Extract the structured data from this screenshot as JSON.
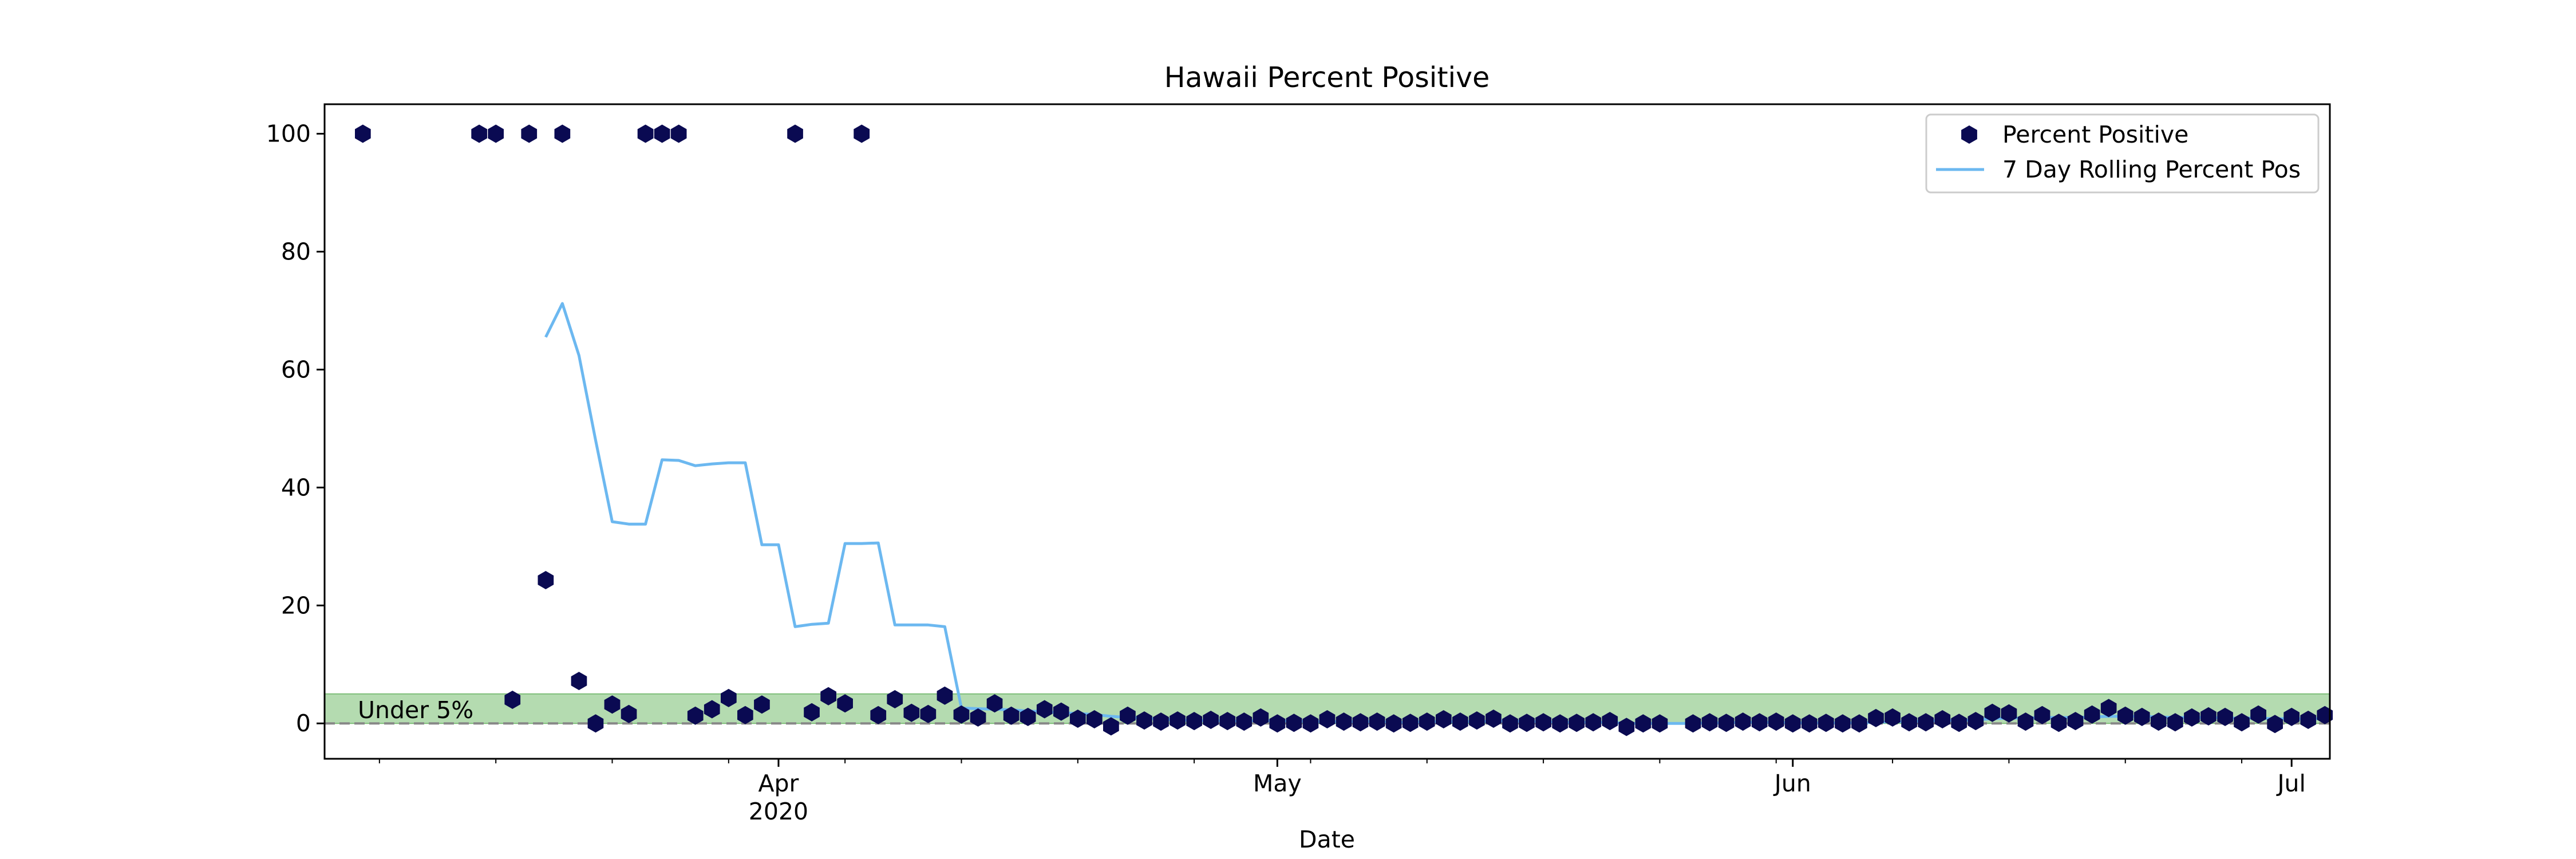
{
  "chart_data": {
    "type": "scatter",
    "title": "Hawaii Percent Positive",
    "xlabel": "Date",
    "ylabel": "",
    "xlim": [
      "2020-03-05",
      "2020-07-03"
    ],
    "ylim": [
      -6,
      105
    ],
    "y_ticks": [
      0,
      20,
      40,
      60,
      80,
      100
    ],
    "x_ticks": [
      {
        "date": "2020-04-01",
        "label": "Apr",
        "sublabel": "2020"
      },
      {
        "date": "2020-05-01",
        "label": "May",
        "sublabel": ""
      },
      {
        "date": "2020-06-01",
        "label": "Jun",
        "sublabel": ""
      },
      {
        "date": "2020-07-01",
        "label": "Jul",
        "sublabel": ""
      }
    ],
    "grid": false,
    "legend_position": "top-right",
    "reference": {
      "band": [
        0,
        5
      ],
      "band_color": "#b4dbb0",
      "band_label": "Under 5%",
      "line_value": 0,
      "line_color": "#888888"
    },
    "series": [
      {
        "name": "Percent Positive",
        "type": "scatter",
        "marker": "hexagon",
        "color": "#0a0a52",
        "points": [
          [
            "2020-03-07",
            100
          ],
          [
            "2020-03-14",
            100
          ],
          [
            "2020-03-15",
            100
          ],
          [
            "2020-03-16",
            4
          ],
          [
            "2020-03-17",
            100
          ],
          [
            "2020-03-18",
            24.3
          ],
          [
            "2020-03-19",
            100
          ],
          [
            "2020-03-20",
            7.2
          ],
          [
            "2020-03-21",
            0
          ],
          [
            "2020-03-22",
            3.2
          ],
          [
            "2020-03-23",
            1.6
          ],
          [
            "2020-03-24",
            100
          ],
          [
            "2020-03-25",
            100
          ],
          [
            "2020-03-26",
            100
          ],
          [
            "2020-03-27",
            1.3
          ],
          [
            "2020-03-28",
            2.4
          ],
          [
            "2020-03-29",
            4.3
          ],
          [
            "2020-03-30",
            1.4
          ],
          [
            "2020-03-31",
            3.2
          ],
          [
            "2020-04-02",
            100
          ],
          [
            "2020-04-03",
            1.9
          ],
          [
            "2020-04-04",
            4.6
          ],
          [
            "2020-04-05",
            3.4
          ],
          [
            "2020-04-06",
            100
          ],
          [
            "2020-04-07",
            1.4
          ],
          [
            "2020-04-08",
            4.1
          ],
          [
            "2020-04-09",
            1.8
          ],
          [
            "2020-04-10",
            1.6
          ],
          [
            "2020-04-11",
            4.7
          ],
          [
            "2020-04-12",
            1.5
          ],
          [
            "2020-04-13",
            1
          ],
          [
            "2020-04-14",
            3.4
          ],
          [
            "2020-04-15",
            1.3
          ],
          [
            "2020-04-16",
            1.1
          ],
          [
            "2020-04-17",
            2.4
          ],
          [
            "2020-04-18",
            2
          ],
          [
            "2020-04-19",
            0.8
          ],
          [
            "2020-04-20",
            0.7
          ],
          [
            "2020-04-21",
            -0.5
          ],
          [
            "2020-04-22",
            1.3
          ],
          [
            "2020-04-23",
            0.5
          ],
          [
            "2020-04-24",
            0.3
          ],
          [
            "2020-04-25",
            0.5
          ],
          [
            "2020-04-26",
            0.4
          ],
          [
            "2020-04-27",
            0.6
          ],
          [
            "2020-04-28",
            0.4
          ],
          [
            "2020-04-29",
            0.3
          ],
          [
            "2020-04-30",
            1
          ],
          [
            "2020-05-01",
            0
          ],
          [
            "2020-05-02",
            0.1
          ],
          [
            "2020-05-03",
            0
          ],
          [
            "2020-05-04",
            0.7
          ],
          [
            "2020-05-05",
            0.3
          ],
          [
            "2020-05-06",
            0.2
          ],
          [
            "2020-05-07",
            0.3
          ],
          [
            "2020-05-08",
            0
          ],
          [
            "2020-05-09",
            0.1
          ],
          [
            "2020-05-10",
            0.3
          ],
          [
            "2020-05-11",
            0.7
          ],
          [
            "2020-05-12",
            0.3
          ],
          [
            "2020-05-13",
            0.5
          ],
          [
            "2020-05-14",
            0.8
          ],
          [
            "2020-05-15",
            0
          ],
          [
            "2020-05-16",
            0.1
          ],
          [
            "2020-05-17",
            0.2
          ],
          [
            "2020-05-18",
            0
          ],
          [
            "2020-05-19",
            0.1
          ],
          [
            "2020-05-20",
            0.2
          ],
          [
            "2020-05-21",
            0.4
          ],
          [
            "2020-05-22",
            -0.6
          ],
          [
            "2020-05-23",
            0
          ],
          [
            "2020-05-24",
            0
          ],
          [
            "2020-05-26",
            0
          ],
          [
            "2020-05-27",
            0.2
          ],
          [
            "2020-05-28",
            0.1
          ],
          [
            "2020-05-29",
            0.3
          ],
          [
            "2020-05-30",
            0.2
          ],
          [
            "2020-05-31",
            0.3
          ],
          [
            "2020-06-01",
            0
          ],
          [
            "2020-06-02",
            0
          ],
          [
            "2020-06-03",
            0.1
          ],
          [
            "2020-06-04",
            0
          ],
          [
            "2020-06-05",
            0
          ],
          [
            "2020-06-06",
            0.9
          ],
          [
            "2020-06-07",
            1
          ],
          [
            "2020-06-08",
            0.2
          ],
          [
            "2020-06-09",
            0.2
          ],
          [
            "2020-06-10",
            0.7
          ],
          [
            "2020-06-11",
            0.1
          ],
          [
            "2020-06-12",
            0.4
          ],
          [
            "2020-06-13",
            1.8
          ],
          [
            "2020-06-14",
            1.7
          ],
          [
            "2020-06-15",
            0.3
          ],
          [
            "2020-06-16",
            1.4
          ],
          [
            "2020-06-17",
            0.1
          ],
          [
            "2020-06-18",
            0.4
          ],
          [
            "2020-06-19",
            1.5
          ],
          [
            "2020-06-20",
            2.6
          ],
          [
            "2020-06-21",
            1.3
          ],
          [
            "2020-06-22",
            1.1
          ],
          [
            "2020-06-23",
            0.3
          ],
          [
            "2020-06-24",
            0.2
          ],
          [
            "2020-06-25",
            1
          ],
          [
            "2020-06-26",
            1.2
          ],
          [
            "2020-06-27",
            1.1
          ],
          [
            "2020-06-28",
            0.2
          ],
          [
            "2020-06-29",
            1.5
          ],
          [
            "2020-06-30",
            -0.1
          ],
          [
            "2020-07-01",
            1.1
          ],
          [
            "2020-07-02",
            0.6
          ],
          [
            "2020-07-03",
            1.4
          ]
        ]
      },
      {
        "name": "7 Day Rolling Percent Pos",
        "type": "line",
        "color": "#6cb8f0",
        "points": [
          [
            "2020-03-18",
            65.5
          ],
          [
            "2020-03-19",
            71.2
          ],
          [
            "2020-03-20",
            62.4
          ],
          [
            "2020-03-21",
            48
          ],
          [
            "2020-03-22",
            34.2
          ],
          [
            "2020-03-23",
            33.8
          ],
          [
            "2020-03-24",
            33.8
          ],
          [
            "2020-03-25",
            44.7
          ],
          [
            "2020-03-26",
            44.6
          ],
          [
            "2020-03-27",
            43.7
          ],
          [
            "2020-03-28",
            44
          ],
          [
            "2020-03-29",
            44.2
          ],
          [
            "2020-03-30",
            44.2
          ],
          [
            "2020-03-31",
            30.3
          ],
          [
            "2020-04-01",
            30.3
          ],
          [
            "2020-04-02",
            16.4
          ],
          [
            "2020-04-03",
            16.8
          ],
          [
            "2020-04-04",
            17
          ],
          [
            "2020-04-05",
            30.5
          ],
          [
            "2020-04-06",
            30.5
          ],
          [
            "2020-04-07",
            30.6
          ],
          [
            "2020-04-08",
            16.7
          ],
          [
            "2020-04-09",
            16.7
          ],
          [
            "2020-04-10",
            16.7
          ],
          [
            "2020-04-11",
            16.4
          ],
          [
            "2020-04-12",
            2.6
          ],
          [
            "2020-04-13",
            2.5
          ],
          [
            "2020-04-14",
            2.4
          ],
          [
            "2020-04-15",
            2.3
          ],
          [
            "2020-04-16",
            2.1
          ],
          [
            "2020-04-17",
            2
          ],
          [
            "2020-04-18",
            1.8
          ],
          [
            "2020-04-19",
            1.7
          ],
          [
            "2020-04-20",
            1.5
          ],
          [
            "2020-04-21",
            1.2
          ],
          [
            "2020-04-22",
            1
          ],
          [
            "2020-04-23",
            0.9
          ],
          [
            "2020-04-24",
            0.7
          ],
          [
            "2020-04-25",
            0.6
          ],
          [
            "2020-04-26",
            0.5
          ],
          [
            "2020-04-27",
            0.5
          ],
          [
            "2020-04-28",
            0.4
          ],
          [
            "2020-04-29",
            0.4
          ],
          [
            "2020-04-30",
            0.5
          ],
          [
            "2020-05-01",
            0.4
          ],
          [
            "2020-05-02",
            0.4
          ],
          [
            "2020-05-03",
            0.3
          ],
          [
            "2020-05-04",
            0.3
          ],
          [
            "2020-05-05",
            0.3
          ],
          [
            "2020-05-06",
            0.3
          ],
          [
            "2020-05-07",
            0.3
          ],
          [
            "2020-05-08",
            0.2
          ],
          [
            "2020-05-09",
            0.2
          ],
          [
            "2020-05-10",
            0.3
          ],
          [
            "2020-05-11",
            0.3
          ],
          [
            "2020-05-12",
            0.3
          ],
          [
            "2020-05-13",
            0.3
          ],
          [
            "2020-05-14",
            0.4
          ],
          [
            "2020-05-15",
            0.4
          ],
          [
            "2020-05-16",
            0.3
          ],
          [
            "2020-05-17",
            0.3
          ],
          [
            "2020-05-18",
            0.2
          ],
          [
            "2020-05-19",
            0.2
          ],
          [
            "2020-05-20",
            0.2
          ],
          [
            "2020-05-21",
            0.2
          ],
          [
            "2020-05-22",
            0
          ],
          [
            "2020-05-23",
            0
          ],
          [
            "2020-05-24",
            0
          ],
          [
            "2020-05-25",
            0
          ],
          [
            "2020-05-26",
            0
          ],
          [
            "2020-05-27",
            0.1
          ],
          [
            "2020-05-28",
            0.1
          ],
          [
            "2020-05-29",
            0.2
          ],
          [
            "2020-05-30",
            0.2
          ],
          [
            "2020-05-31",
            0.2
          ],
          [
            "2020-06-01",
            0.1
          ],
          [
            "2020-06-02",
            0.1
          ],
          [
            "2020-06-03",
            0.1
          ],
          [
            "2020-06-04",
            0.1
          ],
          [
            "2020-06-05",
            0.1
          ],
          [
            "2020-06-06",
            0.2
          ],
          [
            "2020-06-07",
            0.3
          ],
          [
            "2020-06-08",
            0.3
          ],
          [
            "2020-06-09",
            0.4
          ],
          [
            "2020-06-10",
            0.5
          ],
          [
            "2020-06-11",
            0.5
          ],
          [
            "2020-06-12",
            0.6
          ],
          [
            "2020-06-13",
            0.8
          ],
          [
            "2020-06-14",
            0.9
          ],
          [
            "2020-06-15",
            0.9
          ],
          [
            "2020-06-16",
            1
          ],
          [
            "2020-06-17",
            1
          ],
          [
            "2020-06-18",
            1
          ],
          [
            "2020-06-19",
            1.1
          ],
          [
            "2020-06-20",
            1.2
          ],
          [
            "2020-06-21",
            1.2
          ],
          [
            "2020-06-22",
            1.2
          ],
          [
            "2020-06-23",
            1.1
          ],
          [
            "2020-06-24",
            1
          ],
          [
            "2020-06-25",
            1
          ],
          [
            "2020-06-26",
            1
          ],
          [
            "2020-06-27",
            0.9
          ],
          [
            "2020-06-28",
            0.9
          ],
          [
            "2020-06-29",
            0.9
          ],
          [
            "2020-06-30",
            0.8
          ],
          [
            "2020-07-01",
            0.8
          ],
          [
            "2020-07-02",
            0.8
          ],
          [
            "2020-07-03",
            0.8
          ]
        ]
      }
    ]
  }
}
